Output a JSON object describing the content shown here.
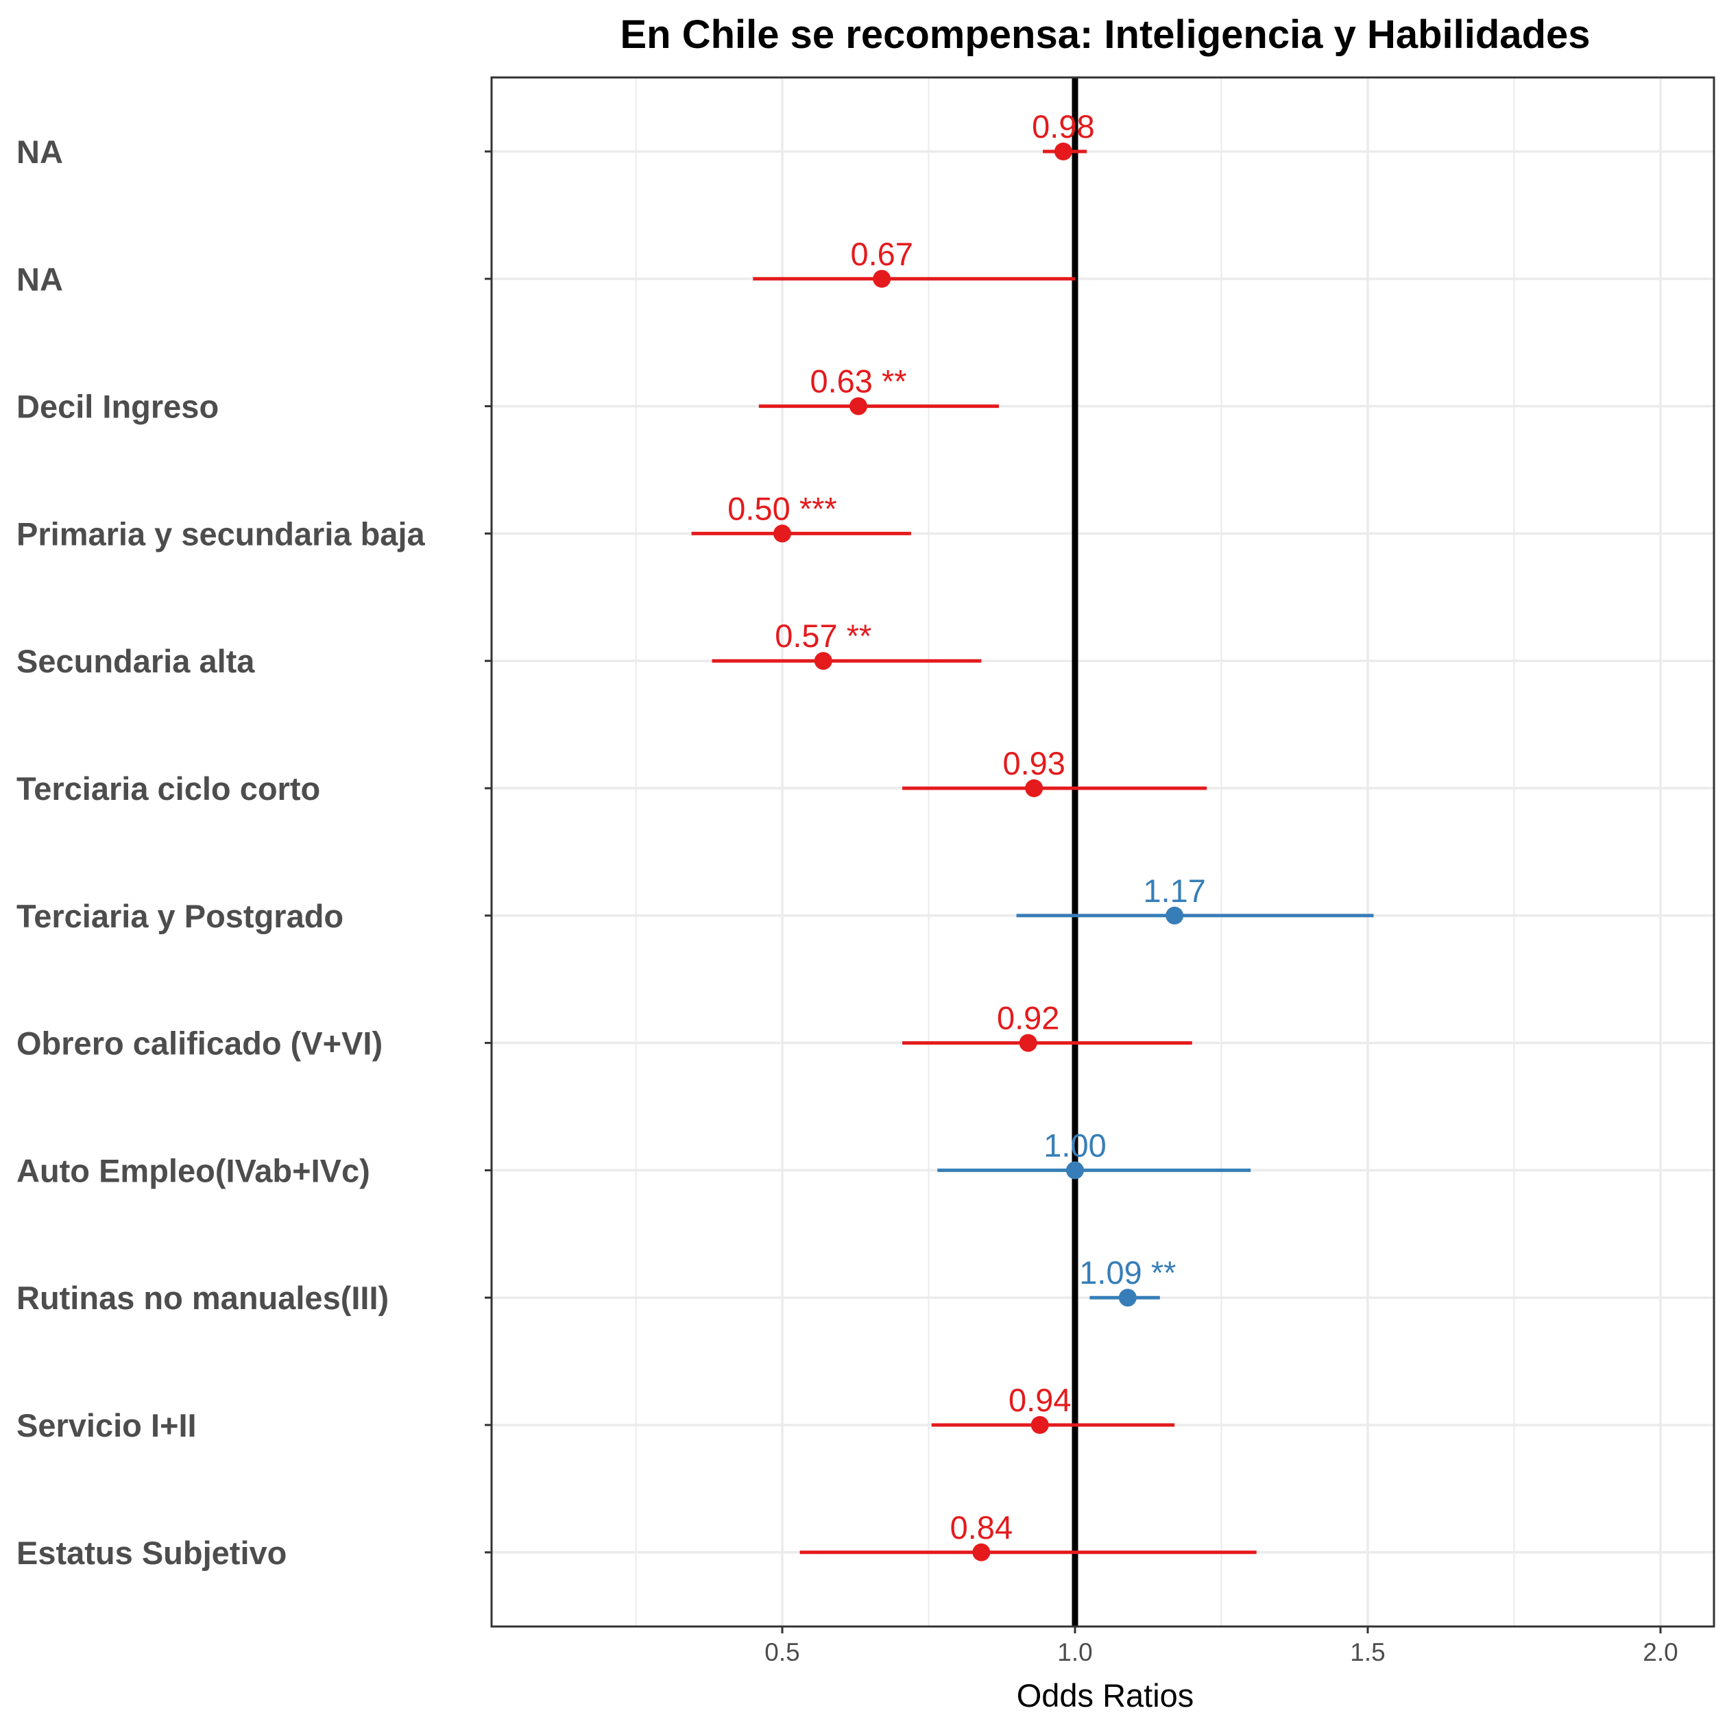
{
  "chart_data": {
    "type": "forest",
    "title": "En Chile se recompensa: Inteligencia y Habilidades",
    "xlabel": "Odds Ratios",
    "ylabel": "",
    "xlim": [
      0.0,
      2.08
    ],
    "x_ticks": [
      0.5,
      1.0,
      1.5,
      2.0
    ],
    "x_tick_labels": [
      "0.5",
      "1.0",
      "1.5",
      "2.0"
    ],
    "reference_line": 1.0,
    "grid": true,
    "colors": {
      "negative": "#e41a1c",
      "positive": "#377eb8",
      "reference": "#000000",
      "grid": "#ebebeb",
      "panel_border": "#333333"
    },
    "rows": [
      {
        "term": "NA",
        "estimate": 0.98,
        "ci_low": 0.945,
        "ci_high": 1.02,
        "label": "0.98",
        "direction": "negative"
      },
      {
        "term": "NA",
        "estimate": 0.67,
        "ci_low": 0.45,
        "ci_high": 1.0,
        "label": "0.67",
        "direction": "negative"
      },
      {
        "term": "Decil Ingreso",
        "estimate": 0.63,
        "ci_low": 0.46,
        "ci_high": 0.87,
        "label": "0.63 **",
        "direction": "negative"
      },
      {
        "term": "Primaria y secundaria baja",
        "estimate": 0.5,
        "ci_low": 0.345,
        "ci_high": 0.72,
        "label": "0.50 ***",
        "direction": "negative"
      },
      {
        "term": "Secundaria alta",
        "estimate": 0.57,
        "ci_low": 0.38,
        "ci_high": 0.84,
        "label": "0.57 **",
        "direction": "negative"
      },
      {
        "term": "Terciaria ciclo corto",
        "estimate": 0.93,
        "ci_low": 0.705,
        "ci_high": 1.225,
        "label": "0.93",
        "direction": "negative"
      },
      {
        "term": "Terciaria y Postgrado",
        "estimate": 1.17,
        "ci_low": 0.9,
        "ci_high": 1.51,
        "label": "1.17",
        "direction": "positive"
      },
      {
        "term": "Obrero calificado (V+VI)",
        "estimate": 0.92,
        "ci_low": 0.705,
        "ci_high": 1.2,
        "label": "0.92",
        "direction": "negative"
      },
      {
        "term": "Auto Empleo(IVab+IVc)",
        "estimate": 1.0,
        "ci_low": 0.765,
        "ci_high": 1.3,
        "label": "1.00",
        "direction": "positive"
      },
      {
        "term": "Rutinas no manuales(III)",
        "estimate": 1.09,
        "ci_low": 1.025,
        "ci_high": 1.145,
        "label": "1.09 **",
        "direction": "positive"
      },
      {
        "term": "Servicio I+II",
        "estimate": 0.94,
        "ci_low": 0.755,
        "ci_high": 1.17,
        "label": "0.94",
        "direction": "negative"
      },
      {
        "term": "Estatus Subjetivo",
        "estimate": 0.84,
        "ci_low": 0.53,
        "ci_high": 1.31,
        "label": "0.84",
        "direction": "negative"
      }
    ]
  }
}
